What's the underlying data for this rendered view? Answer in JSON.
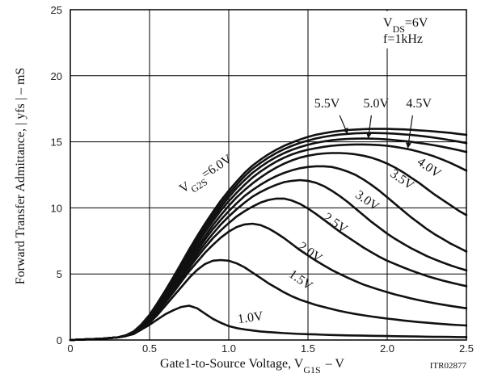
{
  "chart_data": {
    "type": "line",
    "title": "",
    "xlabel": "Gate1-to-Source Voltage, V",
    "xlabel_sub": "G1S",
    "xlabel_suffix": "– V",
    "ylabel": "Forward Transfer Admittance, | yfs |  –  mS",
    "xlim": [
      0,
      2.5
    ],
    "ylim": [
      0,
      25
    ],
    "xticks": [
      "0",
      "0.5",
      "1.0",
      "1.5",
      "2.0",
      "2.5"
    ],
    "yticks": [
      "0",
      "5",
      "10",
      "15",
      "20",
      "25"
    ],
    "grid": true,
    "conditions": {
      "vds_label": "V",
      "vds_sub": "DS",
      "vds_value": "=6V",
      "freq": "f=1kHz"
    },
    "param_prefix": "V",
    "param_prefix_sub": "G2S",
    "code": "ITR02877",
    "x": [
      0,
      0.1,
      0.2,
      0.3,
      0.35,
      0.4,
      0.45,
      0.5,
      0.55,
      0.6,
      0.65,
      0.7,
      0.75,
      0.8,
      0.85,
      0.9,
      0.95,
      1.0,
      1.05,
      1.1,
      1.15,
      1.2,
      1.25,
      1.3,
      1.35,
      1.4,
      1.45,
      1.5,
      1.55,
      1.6,
      1.65,
      1.7,
      1.75,
      1.8,
      1.85,
      1.9,
      1.95,
      2.0,
      2.05,
      2.1,
      2.15,
      2.2,
      2.25,
      2.3,
      2.35,
      2.4,
      2.45,
      2.5
    ],
    "series": [
      {
        "name": "1.0V",
        "values": [
          0,
          0.05,
          0.1,
          0.2,
          0.35,
          0.5,
          0.8,
          1.15,
          1.55,
          1.95,
          2.25,
          2.5,
          2.6,
          2.4,
          2.0,
          1.6,
          1.3,
          1.05,
          0.9,
          0.8,
          0.72,
          0.65,
          0.6,
          0.56,
          0.52,
          0.49,
          0.46,
          0.44,
          0.42,
          0.4,
          0.38,
          0.36,
          0.35,
          0.34,
          0.33,
          0.32,
          0.31,
          0.3,
          0.29,
          0.28,
          0.27,
          0.26,
          0.25,
          0.24,
          0.24,
          0.23,
          0.22,
          0.22
        ]
      },
      {
        "name": "1.5V",
        "values": [
          0,
          0.05,
          0.1,
          0.2,
          0.3,
          0.45,
          0.8,
          1.3,
          1.9,
          2.6,
          3.3,
          4.0,
          4.7,
          5.3,
          5.75,
          6.0,
          6.05,
          6.0,
          5.8,
          5.5,
          5.1,
          4.7,
          4.3,
          3.95,
          3.6,
          3.3,
          3.05,
          2.85,
          2.65,
          2.5,
          2.35,
          2.2,
          2.08,
          1.97,
          1.87,
          1.78,
          1.7,
          1.62,
          1.55,
          1.48,
          1.42,
          1.36,
          1.31,
          1.26,
          1.21,
          1.17,
          1.13,
          1.1
        ]
      },
      {
        "name": "2.0V",
        "values": [
          0,
          0.05,
          0.1,
          0.2,
          0.3,
          0.5,
          0.9,
          1.45,
          2.1,
          2.85,
          3.6,
          4.4,
          5.2,
          5.9,
          6.6,
          7.2,
          7.75,
          8.2,
          8.55,
          8.75,
          8.8,
          8.7,
          8.45,
          8.1,
          7.7,
          7.25,
          6.8,
          6.4,
          6.0,
          5.65,
          5.3,
          5.0,
          4.72,
          4.45,
          4.2,
          4.0,
          3.8,
          3.62,
          3.45,
          3.3,
          3.15,
          3.02,
          2.9,
          2.78,
          2.68,
          2.58,
          2.49,
          2.4
        ]
      },
      {
        "name": "2.5V",
        "values": [
          0,
          0.05,
          0.1,
          0.2,
          0.3,
          0.5,
          0.95,
          1.5,
          2.2,
          3.0,
          3.8,
          4.6,
          5.45,
          6.25,
          7.0,
          7.7,
          8.3,
          8.85,
          9.35,
          9.75,
          10.1,
          10.4,
          10.6,
          10.7,
          10.7,
          10.55,
          10.3,
          9.95,
          9.55,
          9.1,
          8.65,
          8.2,
          7.8,
          7.4,
          7.0,
          6.65,
          6.3,
          6.0,
          5.75,
          5.5,
          5.27,
          5.05,
          4.85,
          4.67,
          4.5,
          4.35,
          4.21,
          4.08
        ]
      },
      {
        "name": "3.0V",
        "values": [
          0,
          0.05,
          0.1,
          0.2,
          0.3,
          0.55,
          1.0,
          1.6,
          2.3,
          3.1,
          3.95,
          4.8,
          5.65,
          6.5,
          7.3,
          8.05,
          8.75,
          9.35,
          9.9,
          10.4,
          10.85,
          11.2,
          11.5,
          11.75,
          11.95,
          12.05,
          12.1,
          12.05,
          11.9,
          11.65,
          11.3,
          10.9,
          10.45,
          9.95,
          9.45,
          8.95,
          8.5,
          8.05,
          7.65,
          7.3,
          6.95,
          6.65,
          6.35,
          6.1,
          5.87,
          5.65,
          5.45,
          5.27
        ]
      },
      {
        "name": "3.5V",
        "values": [
          0,
          0.05,
          0.1,
          0.2,
          0.3,
          0.55,
          1.0,
          1.65,
          2.4,
          3.25,
          4.1,
          5.0,
          5.9,
          6.75,
          7.6,
          8.4,
          9.1,
          9.75,
          10.35,
          10.9,
          11.35,
          11.75,
          12.1,
          12.4,
          12.65,
          12.85,
          13.0,
          13.1,
          13.15,
          13.15,
          13.1,
          12.95,
          12.75,
          12.5,
          12.15,
          11.75,
          11.3,
          10.8,
          10.3,
          9.8,
          9.3,
          8.85,
          8.4,
          8.0,
          7.65,
          7.3,
          7.0,
          6.7
        ]
      },
      {
        "name": "4.0V",
        "values": [
          0,
          0.05,
          0.1,
          0.2,
          0.3,
          0.55,
          1.05,
          1.7,
          2.5,
          3.35,
          4.25,
          5.15,
          6.1,
          7.0,
          7.85,
          8.7,
          9.45,
          10.15,
          10.8,
          11.35,
          11.85,
          12.3,
          12.7,
          13.05,
          13.35,
          13.6,
          13.8,
          13.95,
          14.05,
          14.12,
          14.15,
          14.15,
          14.12,
          14.05,
          13.95,
          13.8,
          13.6,
          13.35,
          13.05,
          12.7,
          12.3,
          11.9,
          11.45,
          11.0,
          10.6,
          10.2,
          9.8,
          9.45
        ]
      },
      {
        "name": "4.5V",
        "values": [
          0,
          0.05,
          0.1,
          0.2,
          0.3,
          0.6,
          1.1,
          1.75,
          2.55,
          3.45,
          4.4,
          5.35,
          6.3,
          7.25,
          8.15,
          9.0,
          9.8,
          10.5,
          11.15,
          11.75,
          12.3,
          12.75,
          13.15,
          13.5,
          13.8,
          14.05,
          14.25,
          14.4,
          14.52,
          14.62,
          14.7,
          14.75,
          14.78,
          14.8,
          14.8,
          14.78,
          14.75,
          14.7,
          14.62,
          14.52,
          14.4,
          14.25,
          14.08,
          13.88,
          13.65,
          13.4,
          13.12,
          12.82
        ]
      },
      {
        "name": "5.0V",
        "values": [
          0,
          0.05,
          0.1,
          0.2,
          0.3,
          0.6,
          1.1,
          1.8,
          2.65,
          3.55,
          4.5,
          5.5,
          6.5,
          7.45,
          8.4,
          9.25,
          10.05,
          10.8,
          11.5,
          12.1,
          12.65,
          13.1,
          13.5,
          13.85,
          14.15,
          14.4,
          14.6,
          14.78,
          14.92,
          15.03,
          15.12,
          15.18,
          15.22,
          15.24,
          15.25,
          15.24,
          15.22,
          15.18,
          15.13,
          15.07,
          15.0,
          14.92,
          14.83,
          14.73,
          14.62,
          14.5,
          14.37,
          14.23
        ]
      },
      {
        "name": "5.5V",
        "values": [
          0,
          0.05,
          0.1,
          0.2,
          0.35,
          0.65,
          1.15,
          1.85,
          2.7,
          3.65,
          4.65,
          5.65,
          6.65,
          7.65,
          8.6,
          9.5,
          10.3,
          11.05,
          11.75,
          12.4,
          12.95,
          13.4,
          13.8,
          14.15,
          14.45,
          14.7,
          14.92,
          15.1,
          15.25,
          15.37,
          15.47,
          15.55,
          15.6,
          15.64,
          15.66,
          15.67,
          15.66,
          15.64,
          15.61,
          15.57,
          15.52,
          15.46,
          15.39,
          15.31,
          15.22,
          15.12,
          15.02,
          14.9
        ]
      },
      {
        "name": "6.0V",
        "values": [
          0,
          0.05,
          0.1,
          0.2,
          0.35,
          0.65,
          1.2,
          1.9,
          2.8,
          3.75,
          4.75,
          5.8,
          6.85,
          7.85,
          8.8,
          9.7,
          10.55,
          11.3,
          12.0,
          12.65,
          13.2,
          13.65,
          14.05,
          14.4,
          14.7,
          14.95,
          15.18,
          15.37,
          15.53,
          15.65,
          15.75,
          15.83,
          15.89,
          15.93,
          15.96,
          15.98,
          15.98,
          15.98,
          15.96,
          15.94,
          15.91,
          15.87,
          15.83,
          15.78,
          15.73,
          15.67,
          15.6,
          15.53
        ]
      }
    ],
    "labels": [
      {
        "text": "1.0V",
        "x": 1.14,
        "y": 1.4
      },
      {
        "text": "1.5V",
        "x": 1.44,
        "y": 4.3
      },
      {
        "text": "2.0V",
        "x": 1.5,
        "y": 6.4
      },
      {
        "text": "2.5V",
        "x": 1.66,
        "y": 8.6
      },
      {
        "text": "3.0V",
        "x": 1.86,
        "y": 10.3
      },
      {
        "text": "3.5V",
        "x": 2.08,
        "y": 11.9
      },
      {
        "text": "4.0V",
        "x": 2.25,
        "y": 12.8
      },
      {
        "text": "5.5V",
        "x": 1.62,
        "y": 17.6
      },
      {
        "text": "5.0V",
        "x": 1.93,
        "y": 17.6
      },
      {
        "text": "4.5V",
        "x": 2.2,
        "y": 17.6
      }
    ],
    "arrows": [
      {
        "from": [
          1.7,
          17.0
        ],
        "to": [
          1.75,
          15.6
        ]
      },
      {
        "from": [
          1.9,
          17.0
        ],
        "to": [
          1.88,
          15.25
        ]
      },
      {
        "from": [
          2.16,
          17.0
        ],
        "to": [
          2.13,
          14.5
        ]
      }
    ],
    "top_label": {
      "text": "=6.0V",
      "x": 0.71,
      "y": 11.1
    }
  }
}
